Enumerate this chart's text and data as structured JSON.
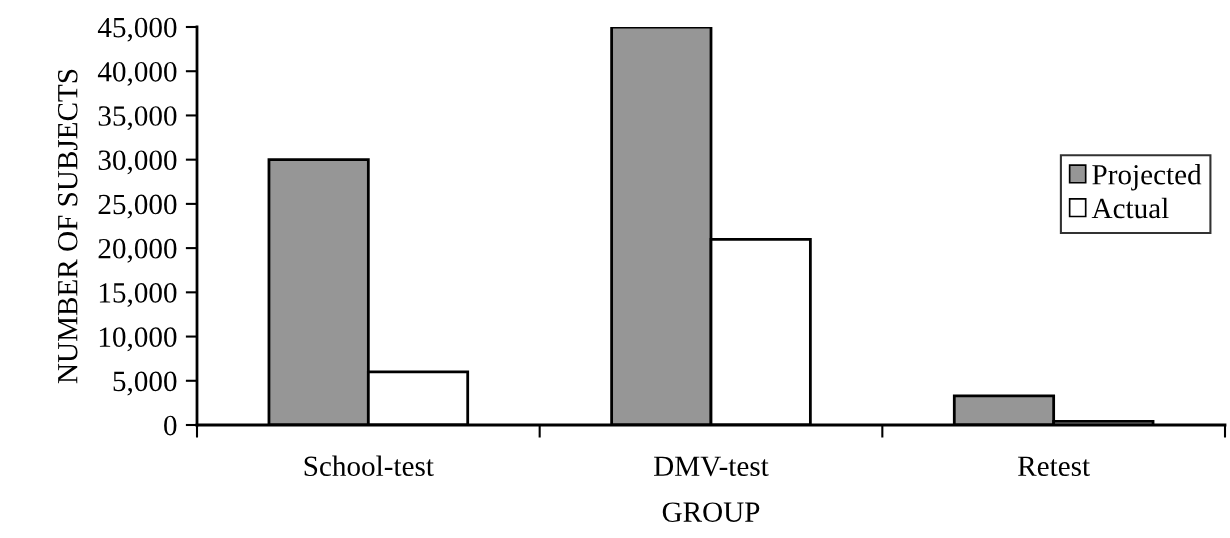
{
  "chart_data": {
    "type": "bar",
    "xlabel": "GROUP",
    "ylabel": "NUMBER OF SUBJECTS",
    "categories": [
      "School-test",
      "DMV-test",
      "Retest"
    ],
    "series": [
      {
        "name": "Projected",
        "color": "#969696",
        "values": [
          30000,
          45000,
          3300
        ]
      },
      {
        "name": "Actual",
        "color": "#ffffff",
        "values": [
          6000,
          21000,
          400
        ]
      }
    ],
    "ylim": [
      0,
      45000
    ],
    "yticks": [
      0,
      {
        "value": 5000,
        "label": "5,000"
      },
      {
        "value": 10000,
        "label": "10,000"
      },
      {
        "value": 15000,
        "label": "15,000"
      },
      {
        "value": 20000,
        "label": "20,000"
      },
      {
        "value": 25000,
        "label": "25,000"
      },
      {
        "value": 30000,
        "label": "30,000"
      },
      {
        "value": 35000,
        "label": "35,000"
      },
      {
        "value": 40000,
        "label": "40,000"
      },
      {
        "value": 45000,
        "label": "45,000"
      }
    ],
    "grid": false,
    "legend": "right"
  }
}
